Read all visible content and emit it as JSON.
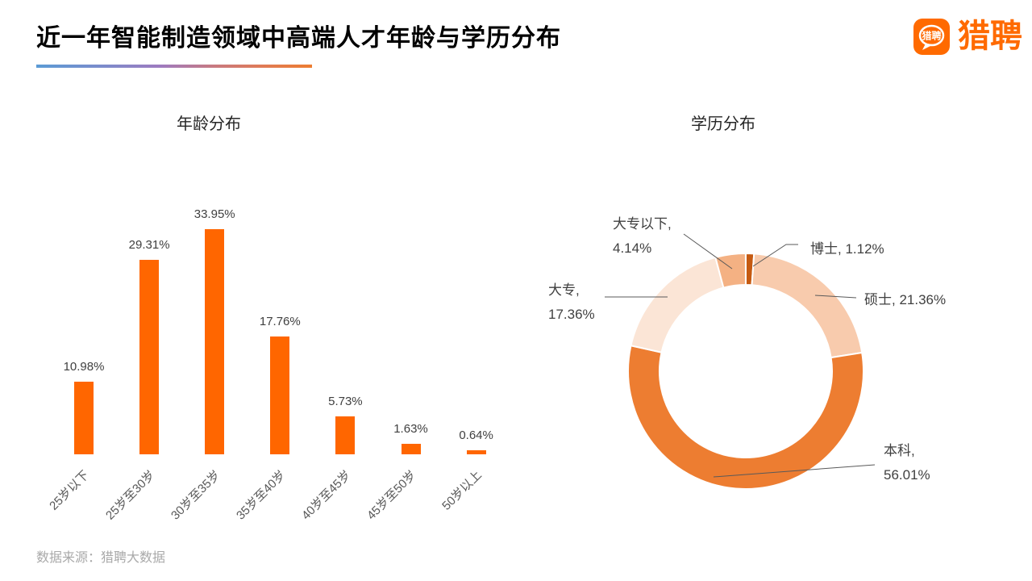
{
  "page": {
    "title": "近一年智能制造领域中高端人才年龄与学历分布",
    "source": "数据来源：猎聘大数据"
  },
  "logo": {
    "icon_text": "猎聘",
    "wordmark": "猎聘",
    "brand_color": "#FF6A00"
  },
  "chart_data": [
    {
      "type": "bar",
      "title": "年龄分布",
      "categories": [
        "25岁以下",
        "25岁至30岁",
        "30岁至35岁",
        "35岁至40岁",
        "40岁至45岁",
        "45岁至50岁",
        "50岁以上"
      ],
      "values": [
        10.98,
        29.31,
        33.95,
        17.76,
        5.73,
        1.63,
        0.64
      ],
      "labels": [
        "10.98%",
        "29.31%",
        "33.95%",
        "17.76%",
        "5.73%",
        "1.63%",
        "0.64%"
      ],
      "bar_color": "#FF6600",
      "xlabel": "",
      "ylabel": "",
      "ylim": [
        0,
        38
      ],
      "grid": false,
      "axis_lines": false,
      "legend": "none"
    },
    {
      "type": "pie",
      "subtype": "donut",
      "title": "学历分布",
      "categories": [
        "博士",
        "硕士",
        "本科",
        "大专",
        "大专以下"
      ],
      "values": [
        1.12,
        21.36,
        56.01,
        17.36,
        4.14
      ],
      "colors": [
        "#C55A11",
        "#F8CBAD",
        "#ED7D31",
        "#FBE5D6",
        "#F4B183"
      ],
      "labels": [
        {
          "line1": "博士, 1.12%",
          "line2": ""
        },
        {
          "line1": "硕士, 21.36%",
          "line2": ""
        },
        {
          "line1": "本科,",
          "line2": "56.01%"
        },
        {
          "line1": "大专,",
          "line2": "17.36%"
        },
        {
          "line1": "大专以下,",
          "line2": "4.14%"
        }
      ],
      "start_angle_deg": 0,
      "direction": "clockwise",
      "legend": "none"
    }
  ]
}
